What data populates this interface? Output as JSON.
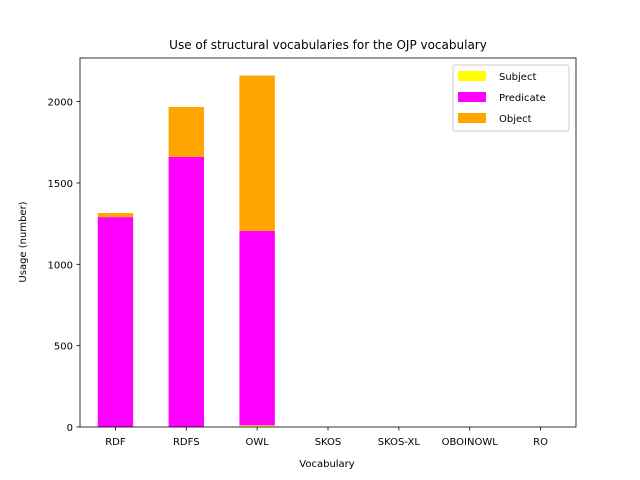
{
  "chart_data": {
    "type": "bar",
    "stacked": true,
    "title": "Use of structural vocabularies for the OJP vocabulary",
    "xlabel": "Vocabulary",
    "ylabel": "Usage (number)",
    "categories": [
      "RDF",
      "RDFS",
      "OWL",
      "SKOS",
      "SKOS-XL",
      "OBOINOWL",
      "RO"
    ],
    "yticks": [
      0,
      500,
      1000,
      1500,
      2000
    ],
    "ylim": [
      0,
      2268
    ],
    "grid": false,
    "legend_position": "top-right",
    "series": [
      {
        "name": "Subject",
        "color": "#ffff00",
        "values": [
          0,
          0,
          10,
          0,
          0,
          0,
          0
        ]
      },
      {
        "name": "Predicate",
        "color": "#ff00ff",
        "values": [
          1290,
          1660,
          1195,
          0,
          0,
          0,
          0
        ]
      },
      {
        "name": "Object",
        "color": "#ffa500",
        "values": [
          25,
          307,
          955,
          0,
          0,
          0,
          0
        ]
      }
    ]
  }
}
